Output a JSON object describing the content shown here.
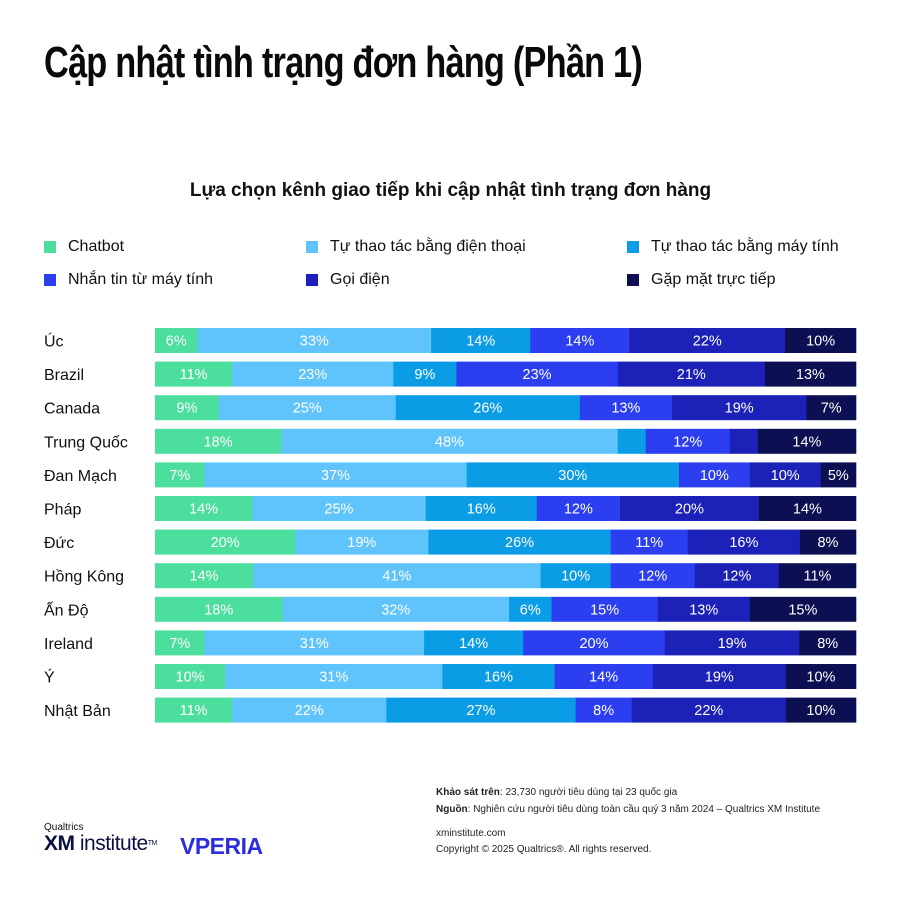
{
  "header": {
    "title": "Cập nhật tình trạng đơn hàng (Phần 1)"
  },
  "colors": [
    "#4cde9d",
    "#5ec4fb",
    "#0a9de6",
    "#2b3ef0",
    "#1c21b7",
    "#0c0f52"
  ],
  "chart_data": {
    "type": "bar",
    "orientation": "horizontal",
    "stacked": true,
    "title": "Lựa chọn kênh giao tiếp khi cập nhật tình trạng đơn hàng",
    "legend_position": "top",
    "categories": [
      "Úc",
      "Brazil",
      "Canada",
      "Trung Quốc",
      "Đan Mạch",
      "Pháp",
      "Đức",
      "Hồng Kông",
      "Ấn Độ",
      "Ireland",
      "Ý",
      "Nhật Bản"
    ],
    "series": [
      {
        "name": "Chatbot",
        "values": [
          6,
          11,
          9,
          18,
          7,
          14,
          20,
          14,
          18,
          7,
          10,
          11
        ]
      },
      {
        "name": "Tự thao tác bằng điện thoại",
        "values": [
          33,
          23,
          25,
          48,
          37,
          25,
          19,
          41,
          32,
          31,
          31,
          22
        ]
      },
      {
        "name": "Tự thao tác bằng máy tính",
        "values": [
          14,
          9,
          26,
          4,
          30,
          16,
          26,
          10,
          6,
          14,
          16,
          27
        ]
      },
      {
        "name": "Nhắn tin từ máy tính",
        "values": [
          14,
          23,
          13,
          12,
          10,
          12,
          11,
          12,
          15,
          20,
          14,
          8
        ]
      },
      {
        "name": "Gọi điện",
        "values": [
          22,
          21,
          19,
          4,
          10,
          20,
          16,
          12,
          13,
          19,
          19,
          22
        ]
      },
      {
        "name": "Gặp mặt trực tiếp",
        "values": [
          10,
          13,
          7,
          14,
          5,
          14,
          8,
          11,
          15,
          8,
          10,
          10
        ]
      }
    ],
    "labels": [
      [
        "6%",
        "33%",
        "14%",
        "14%",
        "22%",
        "10%"
      ],
      [
        "11%",
        "23%",
        "9%",
        "23%",
        "21%",
        "13%"
      ],
      [
        "9%",
        "25%",
        "26%",
        "13%",
        "19%",
        "7%"
      ],
      [
        "18%",
        "48%",
        "",
        "12%",
        "",
        "14%"
      ],
      [
        "7%",
        "37%",
        "30%",
        "10%",
        "10%",
        "5%"
      ],
      [
        "14%",
        "25%",
        "16%",
        "12%",
        "20%",
        "14%"
      ],
      [
        "20%",
        "19%",
        "26%",
        "11%",
        "16%",
        "8%"
      ],
      [
        "14%",
        "41%",
        "10%",
        "12%",
        "12%",
        "11%"
      ],
      [
        "18%",
        "32%",
        "6%",
        "15%",
        "13%",
        "15%"
      ],
      [
        "7%",
        "31%",
        "14%",
        "20%",
        "19%",
        "8%"
      ],
      [
        "10%",
        "31%",
        "16%",
        "14%",
        "19%",
        "10%"
      ],
      [
        "11%",
        "22%",
        "27%",
        "8%",
        "22%",
        "10%"
      ]
    ]
  },
  "footer": {
    "survey_label": "Khảo sát trên",
    "survey_text": ": 23,730 người tiêu dùng tại 23 quốc gia",
    "source_label": "Nguồn",
    "source_text": ": Nghiên cứu người tiêu dùng toàn cầu quý 3 năm 2024 – Qualtrics XM Institute",
    "website": "xminstitute.com",
    "copyright": "Copyright © 2025 Qualtrics®. All rights reserved."
  },
  "logos": {
    "qualtrics": "Qualtrics",
    "xm": "XM",
    "institute": "institute",
    "tm": "TM",
    "vperia": "VPERIA"
  }
}
